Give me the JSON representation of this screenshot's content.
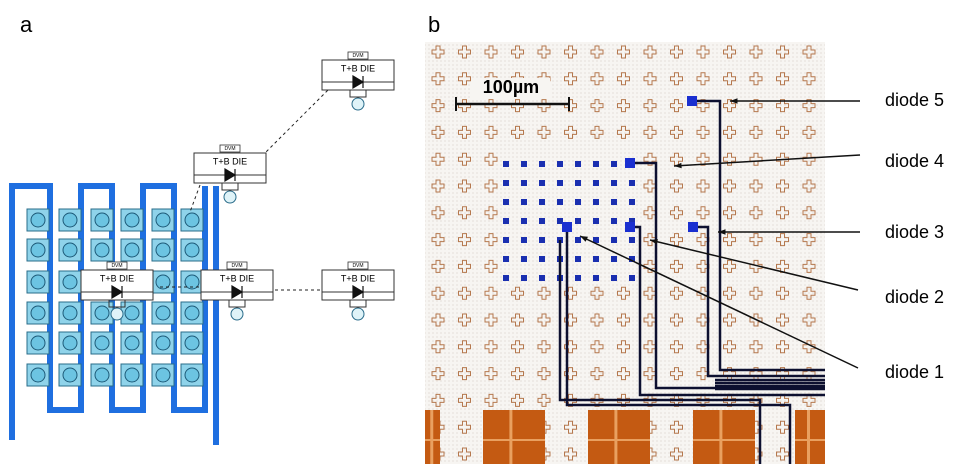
{
  "panels": [
    {
      "label": "a",
      "circuits": [
        {
          "meter": "DVM",
          "label": "T+B DIE"
        },
        {
          "meter": "DVM",
          "label": "T+B DIE"
        },
        {
          "meter": "DVM",
          "label": "T+B DIE"
        },
        {
          "meter": "DVM",
          "label": "T+B DIE"
        },
        {
          "meter": "DVM",
          "label": "T+B DIE"
        }
      ]
    },
    {
      "label": "b",
      "scale_bar": "100µm",
      "diodes": [
        "diode 5",
        "diode 4",
        "diode 3",
        "diode 2",
        "diode 1"
      ]
    }
  ]
}
